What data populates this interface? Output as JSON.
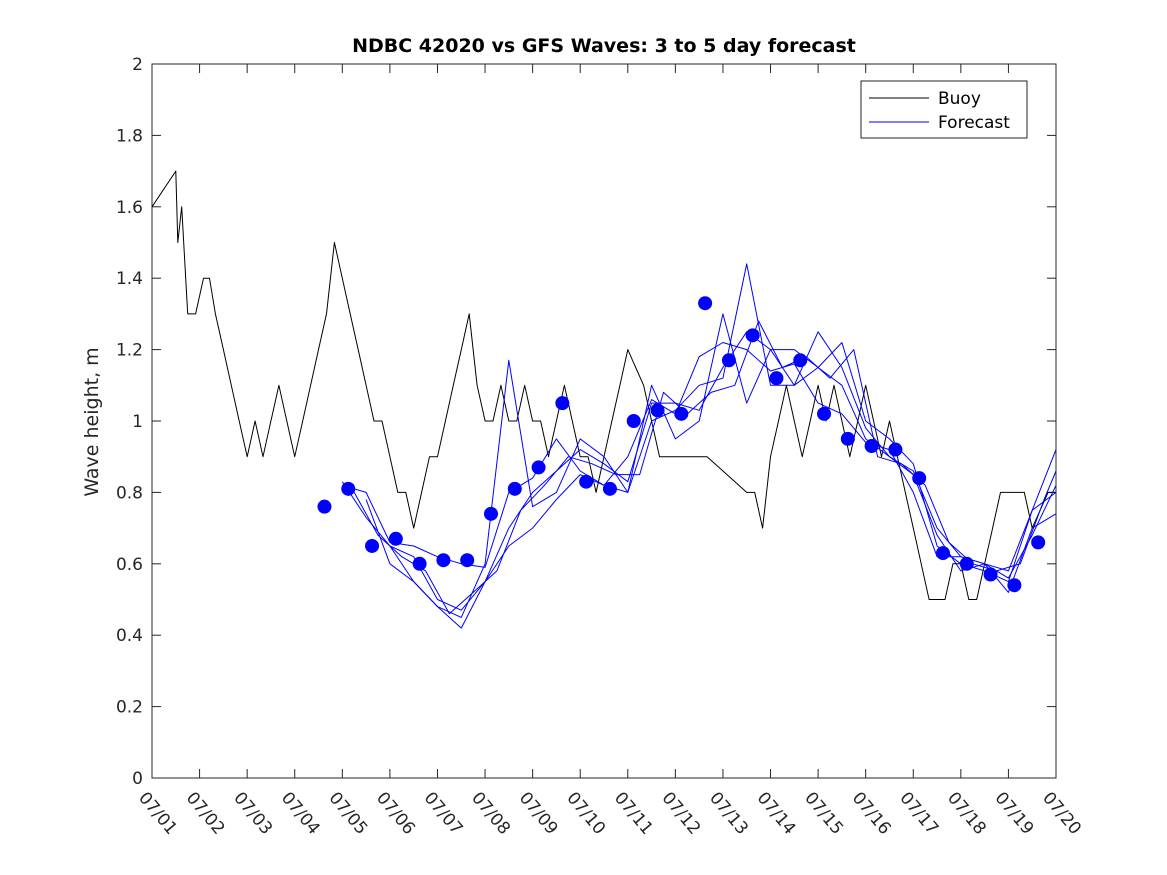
{
  "chart_data": {
    "type": "line",
    "title": "NDBC 42020 vs GFS Waves: 3 to 5 day forecast",
    "xlabel": "",
    "ylabel": "Wave height, m",
    "xlim": [
      "07/01",
      "07/20"
    ],
    "ylim": [
      0,
      2
    ],
    "y_ticks": [
      0,
      0.2,
      0.4,
      0.6,
      0.8,
      1,
      1.2,
      1.4,
      1.6,
      1.8,
      2
    ],
    "y_tick_labels": [
      "0",
      "0.2",
      "0.4",
      "0.6",
      "0.8",
      "1",
      "1.2",
      "1.4",
      "1.6",
      "1.8",
      "2"
    ],
    "x_tick_labels": [
      "07/01",
      "07/02",
      "07/03",
      "07/04",
      "07/05",
      "07/06",
      "07/07",
      "07/08",
      "07/09",
      "07/10",
      "07/11",
      "07/12",
      "07/13",
      "07/14",
      "07/15",
      "07/16",
      "07/17",
      "07/18",
      "07/19",
      "07/20"
    ],
    "grid": false,
    "legend": {
      "position": "top-right",
      "entries": [
        "Buoy",
        "Forecast"
      ]
    },
    "colors": {
      "buoy": "#000000",
      "forecast": "#0000ff"
    },
    "series": [
      {
        "name": "Buoy",
        "x": [
          "07/01 00:00",
          "07/01 12:00",
          "07/01 13:00",
          "07/01 15:00",
          "07/01 17:00",
          "07/01 18:00",
          "07/01 22:00",
          "07/02 02:00",
          "07/02 05:00",
          "07/02 08:00",
          "07/02 12:00",
          "07/02 16:00",
          "07/02 20:00",
          "07/03 00:00",
          "07/03 04:00",
          "07/03 08:00",
          "07/03 12:00",
          "07/03 16:00",
          "07/03 20:00",
          "07/04 00:00",
          "07/04 04:00",
          "07/04 08:00",
          "07/04 12:00",
          "07/04 16:00",
          "07/04 20:00",
          "07/05 00:00",
          "07/05 04:00",
          "07/05 08:00",
          "07/05 12:00",
          "07/05 16:00",
          "07/05 20:00",
          "07/06 00:00",
          "07/06 04:00",
          "07/06 08:00",
          "07/06 12:00",
          "07/06 16:00",
          "07/06 20:00",
          "07/07 00:00",
          "07/07 04:00",
          "07/07 08:00",
          "07/07 12:00",
          "07/07 16:00",
          "07/07 20:00",
          "07/08 00:00",
          "07/08 04:00",
          "07/08 08:00",
          "07/08 12:00",
          "07/08 16:00",
          "07/08 20:00",
          "07/09 00:00",
          "07/09 04:00",
          "07/09 08:00",
          "07/09 12:00",
          "07/09 16:00",
          "07/09 20:00",
          "07/10 00:00",
          "07/10 04:00",
          "07/10 08:00",
          "07/10 12:00",
          "07/10 16:00",
          "07/10 20:00",
          "07/11 00:00",
          "07/11 04:00",
          "07/11 08:00",
          "07/11 12:00",
          "07/11 16:00",
          "07/12 16:00",
          "07/13 12:00",
          "07/13 16:00",
          "07/13 20:00",
          "07/14 00:00",
          "07/14 04:00",
          "07/14 08:00",
          "07/14 12:00",
          "07/14 16:00",
          "07/14 20:00",
          "07/15 00:00",
          "07/15 04:00",
          "07/15 08:00",
          "07/15 12:00",
          "07/15 16:00",
          "07/15 20:00",
          "07/16 00:00",
          "07/16 04:00",
          "07/16 08:00",
          "07/16 12:00",
          "07/16 16:00",
          "07/16 20:00",
          "07/17 00:00",
          "07/17 04:00",
          "07/17 08:00",
          "07/17 12:00",
          "07/17 16:00",
          "07/17 20:00",
          "07/18 00:00",
          "07/18 04:00",
          "07/18 08:00",
          "07/18 12:00",
          "07/18 16:00",
          "07/18 20:00",
          "07/19 00:00",
          "07/19 04:00",
          "07/19 08:00",
          "07/19 12:00",
          "07/19 16:00",
          "07/19 20:00",
          "07/20 00:00"
        ],
        "values": [
          1.6,
          1.7,
          1.5,
          1.6,
          1.4,
          1.3,
          1.3,
          1.4,
          1.4,
          1.3,
          1.2,
          1.1,
          1.0,
          0.9,
          1.0,
          0.9,
          1.0,
          1.1,
          1.0,
          0.9,
          1.0,
          1.1,
          1.2,
          1.3,
          1.5,
          1.4,
          1.3,
          1.2,
          1.1,
          1.0,
          1.0,
          0.9,
          0.8,
          0.8,
          0.7,
          0.8,
          0.9,
          0.9,
          1.0,
          1.1,
          1.2,
          1.3,
          1.1,
          1.0,
          1.0,
          1.1,
          1.0,
          1.0,
          1.1,
          1.0,
          1.0,
          0.9,
          1.0,
          1.1,
          1.0,
          0.9,
          0.9,
          0.8,
          0.9,
          1.0,
          1.1,
          1.2,
          1.15,
          1.1,
          1.0,
          0.9,
          0.9,
          0.8,
          0.8,
          0.7,
          0.9,
          1.0,
          1.1,
          1.0,
          0.9,
          1.0,
          1.1,
          1.0,
          1.1,
          1.0,
          0.9,
          1.0,
          1.1,
          1.0,
          0.9,
          1.0,
          0.9,
          0.8,
          0.7,
          0.6,
          0.5,
          0.5,
          0.5,
          0.6,
          0.6,
          0.5,
          0.5,
          0.6,
          0.7,
          0.8,
          0.8,
          0.8,
          0.8,
          0.7,
          0.75,
          0.8,
          0.8
        ]
      },
      {
        "name": "Forecast",
        "x": [
          "07/05 00:00",
          "07/05 12:00",
          "07/06 00:00",
          "07/06 12:00",
          "07/07 00:00",
          "07/07 12:00",
          "07/08 00:00",
          "07/08 12:00",
          "07/09 00:00",
          "07/09 12:00",
          "07/10 00:00",
          "07/10 12:00",
          "07/11 00:00",
          "07/11 12:00",
          "07/12 00:00",
          "07/12 12:00",
          "07/13 00:00",
          "07/13 12:00",
          "07/14 00:00",
          "07/14 12:00",
          "07/15 00:00",
          "07/15 12:00",
          "07/16 00:00",
          "07/16 12:00",
          "07/17 00:00",
          "07/17 12:00",
          "07/18 00:00",
          "07/18 12:00",
          "07/19 00:00",
          "07/19 12:00",
          "07/20 00:00"
        ],
        "values": [
          0.83,
          0.73,
          0.65,
          0.62,
          0.5,
          0.47,
          0.55,
          0.7,
          0.8,
          0.86,
          0.92,
          0.88,
          0.83,
          1.05,
          1.05,
          1.03,
          1.15,
          1.25,
          1.2,
          1.2,
          1.15,
          1.1,
          0.95,
          0.9,
          0.86,
          0.7,
          0.62,
          0.6,
          0.58,
          0.75,
          0.92
        ]
      },
      {
        "name": "Forecast",
        "x": [
          "07/05 06:00",
          "07/05 18:00",
          "07/06 06:00",
          "07/06 18:00",
          "07/07 06:00",
          "07/07 18:00",
          "07/08 06:00",
          "07/08 18:00",
          "07/09 06:00",
          "07/09 18:00",
          "07/10 06:00",
          "07/10 18:00",
          "07/11 06:00",
          "07/11 18:00",
          "07/12 06:00",
          "07/12 18:00",
          "07/13 06:00",
          "07/13 18:00",
          "07/14 06:00",
          "07/14 18:00",
          "07/15 06:00",
          "07/15 18:00",
          "07/16 06:00",
          "07/16 18:00",
          "07/17 06:00",
          "07/17 18:00",
          "07/18 06:00",
          "07/18 18:00",
          "07/19 06:00",
          "07/19 18:00",
          "07/20 00:00"
        ],
        "values": [
          0.8,
          0.68,
          0.62,
          0.58,
          0.46,
          0.52,
          0.58,
          0.75,
          0.82,
          0.9,
          0.88,
          0.85,
          0.85,
          1.08,
          1.02,
          1.08,
          1.1,
          1.28,
          1.15,
          1.18,
          1.12,
          1.2,
          0.9,
          0.88,
          0.82,
          0.66,
          0.6,
          0.58,
          0.6,
          0.78,
          0.86
        ]
      },
      {
        "name": "Forecast",
        "x": [
          "07/05 12:00",
          "07/06 00:00",
          "07/06 12:00",
          "07/07 00:00",
          "07/07 12:00",
          "07/08 00:00",
          "07/08 12:00",
          "07/09 00:00",
          "07/09 12:00",
          "07/10 00:00",
          "07/10 12:00",
          "07/11 00:00",
          "07/11 12:00",
          "07/12 00:00",
          "07/12 12:00",
          "07/13 00:00",
          "07/13 12:00",
          "07/14 00:00",
          "07/14 12:00",
          "07/15 00:00",
          "07/15 12:00",
          "07/16 00:00",
          "07/16 12:00",
          "07/17 00:00",
          "07/17 12:00",
          "07/18 00:00",
          "07/18 12:00",
          "07/19 00:00",
          "07/19 12:00",
          "07/20 00:00"
        ],
        "values": [
          0.78,
          0.6,
          0.55,
          0.48,
          0.42,
          0.55,
          0.65,
          0.7,
          0.78,
          0.85,
          0.82,
          0.8,
          1.0,
          1.03,
          1.1,
          1.12,
          1.44,
          1.1,
          1.1,
          1.15,
          1.22,
          1.0,
          0.95,
          0.88,
          0.65,
          0.6,
          0.58,
          0.55,
          0.75,
          0.8
        ]
      },
      {
        "name": "Forecast",
        "x": [
          "07/06 00:00",
          "07/06 12:00",
          "07/07 00:00",
          "07/07 12:00",
          "07/08 00:00",
          "07/08 12:00",
          "07/09 00:00",
          "07/09 12:00",
          "07/10 00:00",
          "07/10 12:00",
          "07/11 00:00",
          "07/11 12:00",
          "07/12 00:00",
          "07/12 12:00",
          "07/13 00:00",
          "07/13 12:00",
          "07/14 00:00",
          "07/14 12:00",
          "07/15 00:00",
          "07/15 12:00",
          "07/16 00:00",
          "07/16 12:00",
          "07/17 00:00",
          "07/17 12:00",
          "07/18 00:00",
          "07/18 12:00",
          "07/19 00:00",
          "07/19 12:00",
          "07/20 00:00"
        ],
        "values": [
          0.65,
          0.55,
          0.48,
          0.45,
          0.6,
          1.17,
          0.76,
          0.8,
          0.95,
          0.9,
          0.8,
          1.1,
          0.95,
          1.0,
          1.3,
          1.05,
          1.2,
          1.1,
          1.25,
          1.15,
          0.98,
          0.9,
          0.85,
          0.68,
          0.58,
          0.6,
          0.52,
          0.7,
          0.74
        ]
      },
      {
        "name": "Forecast",
        "x": [
          "07/05 00:00",
          "07/05 12:00",
          "07/06 00:00",
          "07/06 12:00",
          "07/07 00:00",
          "07/07 12:00",
          "07/08 00:00",
          "07/08 12:00",
          "07/09 00:00",
          "07/09 12:00",
          "07/10 00:00",
          "07/10 12:00",
          "07/11 00:00",
          "07/11 12:00",
          "07/12 00:00",
          "07/12 12:00",
          "07/13 00:00",
          "07/13 12:00",
          "07/14 00:00",
          "07/14 12:00",
          "07/15 00:00",
          "07/15 12:00",
          "07/16 00:00",
          "07/16 12:00",
          "07/17 00:00",
          "07/17 12:00",
          "07/18 00:00",
          "07/18 12:00",
          "07/19 00:00",
          "07/19 12:00",
          "07/20 00:00"
        ],
        "values": [
          0.82,
          0.8,
          0.66,
          0.65,
          0.62,
          0.6,
          0.59,
          0.8,
          0.84,
          0.95,
          0.86,
          0.82,
          0.9,
          1.06,
          1.02,
          1.18,
          1.22,
          1.2,
          1.14,
          1.16,
          1.05,
          1.02,
          0.94,
          0.92,
          0.8,
          0.62,
          0.62,
          0.6,
          0.56,
          0.68,
          0.82
        ]
      },
      {
        "name": "Forecast",
        "x": [
          "07/04 15:00",
          "07/05 03:00",
          "07/05 15:00",
          "07/06 03:00",
          "07/06 15:00",
          "07/07 03:00",
          "07/07 15:00",
          "07/08 03:00",
          "07/08 15:00",
          "07/09 03:00",
          "07/09 15:00",
          "07/10 03:00",
          "07/10 15:00",
          "07/11 03:00",
          "07/11 15:00",
          "07/12 03:00",
          "07/12 15:00",
          "07/13 03:00",
          "07/13 15:00",
          "07/14 03:00",
          "07/14 15:00",
          "07/15 03:00",
          "07/15 15:00",
          "07/16 03:00",
          "07/16 15:00",
          "07/17 03:00",
          "07/17 15:00",
          "07/18 03:00",
          "07/18 15:00",
          "07/19 03:00",
          "07/19 15:00"
        ],
        "values": [
          0.76,
          0.81,
          0.65,
          0.67,
          0.6,
          0.61,
          0.61,
          0.74,
          0.81,
          0.87,
          1.05,
          0.83,
          0.81,
          1.0,
          1.03,
          1.02,
          1.33,
          1.17,
          1.24,
          1.12,
          1.17,
          1.02,
          0.95,
          0.93,
          0.92,
          0.84,
          0.63,
          0.6,
          0.57,
          0.54,
          0.66
        ]
      }
    ]
  }
}
